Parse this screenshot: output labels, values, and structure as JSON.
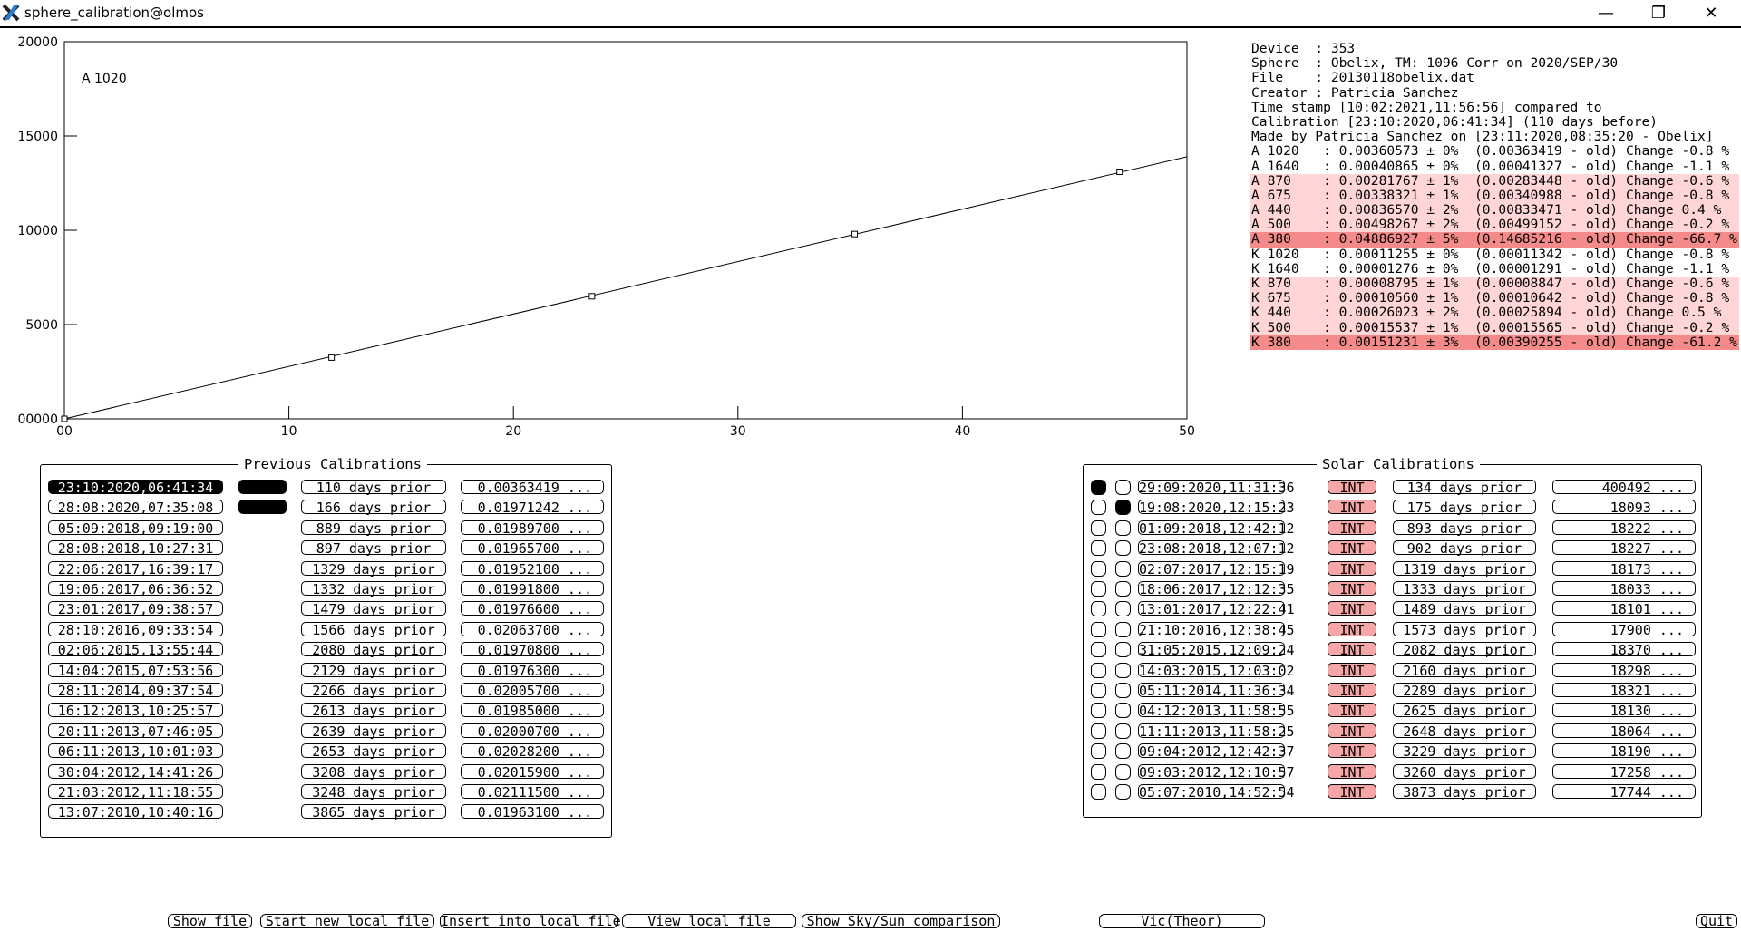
{
  "window": {
    "title": "sphere_calibration@olmos",
    "minimize_glyph": "—",
    "maximize_glyph": "❐",
    "close_glyph": "✕",
    "app_icon": "x-logo-icon"
  },
  "chart_data": {
    "type": "scatter",
    "annotation": "A 1020",
    "xlim": [
      0,
      50
    ],
    "ylim": [
      0,
      20000
    ],
    "xticks": [
      "00",
      "10",
      "20",
      "30",
      "40",
      "50"
    ],
    "yticks": [
      "00000",
      "5000",
      "10000",
      "15000",
      "20000"
    ],
    "xtick_values": [
      0,
      10,
      20,
      30,
      40,
      50
    ],
    "ytick_values": [
      0,
      5000,
      10000,
      15000,
      20000
    ],
    "points": [
      {
        "x": 0,
        "y": 0
      },
      {
        "x": 11.9,
        "y": 3250
      },
      {
        "x": 23.5,
        "y": 6500
      },
      {
        "x": 35.2,
        "y": 9800
      },
      {
        "x": 47.0,
        "y": 13100
      }
    ],
    "fit_line": [
      {
        "x": 0,
        "y": 0
      },
      {
        "x": 50,
        "y": 13900
      }
    ],
    "grid": false
  },
  "info": {
    "header_lines": [
      "Device  : 353",
      "Sphere  : Obelix, TM: 1096 Corr on 2020/SEP/30",
      "File    : 20130118obelix.dat",
      "Creator : Patricia Sanchez",
      "Time stamp [10:02:2021,11:56:56] compared to",
      "Calibration [23:10:2020,06:41:34] (110 days before)",
      "Made by Patricia Sanchez on [23:11:2020,08:35:20 - Obelix]"
    ],
    "coef_lines": [
      {
        "text": "A 1020   : 0.00360573 ± 0%  (0.00363419 - old) Change -0.8 %",
        "level": "none"
      },
      {
        "text": "A 1640   : 0.00040865 ± 0%  (0.00041327 - old) Change -1.1 %",
        "level": "none"
      },
      {
        "text": "A 870    : 0.00281767 ± 1%  (0.00283448 - old) Change -0.6 %",
        "level": "pink"
      },
      {
        "text": "A 675    : 0.00338321 ± 1%  (0.00340988 - old) Change -0.8 %",
        "level": "pink"
      },
      {
        "text": "A 440    : 0.00836570 ± 2%  (0.00833471 - old) Change 0.4 %",
        "level": "pink"
      },
      {
        "text": "A 500    : 0.00498267 ± 2%  (0.00499152 - old) Change -0.2 %",
        "level": "pink"
      },
      {
        "text": "A 380    : 0.04886927 ± 5%  (0.14685216 - old) Change -66.7 %",
        "level": "red"
      },
      {
        "text": "K 1020   : 0.00011255 ± 0%  (0.00011342 - old) Change -0.8 %",
        "level": "none"
      },
      {
        "text": "K 1640   : 0.00001276 ± 0%  (0.00001291 - old) Change -1.1 %",
        "level": "none"
      },
      {
        "text": "K 870    : 0.00008795 ± 1%  (0.00008847 - old) Change -0.6 %",
        "level": "pink"
      },
      {
        "text": "K 675    : 0.00010560 ± 1%  (0.00010642 - old) Change -0.8 %",
        "level": "pink"
      },
      {
        "text": "K 440    : 0.00026023 ± 2%  (0.00025894 - old) Change 0.5 %",
        "level": "pink"
      },
      {
        "text": "K 500    : 0.00015537 ± 1%  (0.00015565 - old) Change -0.2 %",
        "level": "pink"
      },
      {
        "text": "K 380    : 0.00151231 ± 3%  (0.00390255 - old) Change -61.2 %",
        "level": "red"
      }
    ]
  },
  "previous": {
    "title": "Previous Calibrations",
    "rows": [
      {
        "date": "23:10:2020,06:41:34",
        "selected": true,
        "marked": true,
        "days": "110 days prior",
        "value": "0.00363419 ..."
      },
      {
        "date": "28:08:2020,07:35:08",
        "selected": false,
        "marked": true,
        "days": "166 days prior",
        "value": "0.01971242 ..."
      },
      {
        "date": "05:09:2018,09:19:00",
        "selected": false,
        "marked": false,
        "days": "889 days prior",
        "value": "0.01989700 ..."
      },
      {
        "date": "28:08:2018,10:27:31",
        "selected": false,
        "marked": false,
        "days": "897 days prior",
        "value": "0.01965700 ..."
      },
      {
        "date": "22:06:2017,16:39:17",
        "selected": false,
        "marked": false,
        "days": "1329 days prior",
        "value": "0.01952100 ..."
      },
      {
        "date": "19:06:2017,06:36:52",
        "selected": false,
        "marked": false,
        "days": "1332 days prior",
        "value": "0.01991800 ..."
      },
      {
        "date": "23:01:2017,09:38:57",
        "selected": false,
        "marked": false,
        "days": "1479 days prior",
        "value": "0.01976600 ..."
      },
      {
        "date": "28:10:2016,09:33:54",
        "selected": false,
        "marked": false,
        "days": "1566 days prior",
        "value": "0.02063700 ..."
      },
      {
        "date": "02:06:2015,13:55:44",
        "selected": false,
        "marked": false,
        "days": "2080 days prior",
        "value": "0.01970800 ..."
      },
      {
        "date": "14:04:2015,07:53:56",
        "selected": false,
        "marked": false,
        "days": "2129 days prior",
        "value": "0.01976300 ..."
      },
      {
        "date": "28:11:2014,09:37:54",
        "selected": false,
        "marked": false,
        "days": "2266 days prior",
        "value": "0.02005700 ..."
      },
      {
        "date": "16:12:2013,10:25:57",
        "selected": false,
        "marked": false,
        "days": "2613 days prior",
        "value": "0.01985000 ..."
      },
      {
        "date": "20:11:2013,07:46:05",
        "selected": false,
        "marked": false,
        "days": "2639 days prior",
        "value": "0.02000700 ..."
      },
      {
        "date": "06:11:2013,10:01:03",
        "selected": false,
        "marked": false,
        "days": "2653 days prior",
        "value": "0.02028200 ..."
      },
      {
        "date": "30:04:2012,14:41:26",
        "selected": false,
        "marked": false,
        "days": "3208 days prior",
        "value": "0.02015900 ..."
      },
      {
        "date": "21:03:2012,11:18:55",
        "selected": false,
        "marked": false,
        "days": "3248 days prior",
        "value": "0.02111500 ..."
      },
      {
        "date": "13:07:2010,10:40:16",
        "selected": false,
        "marked": false,
        "days": "3865 days prior",
        "value": "0.01963100 ..."
      }
    ]
  },
  "solar": {
    "title": "Solar Calibrations",
    "int_label": "INT",
    "rows": [
      {
        "c1": true,
        "c2": false,
        "date": "29:09:2020,11:31:36",
        "days": "134 days prior",
        "value": "400492 ..."
      },
      {
        "c1": false,
        "c2": true,
        "date": "19:08:2020,12:15:23",
        "days": "175 days prior",
        "value": "18093 ..."
      },
      {
        "c1": false,
        "c2": false,
        "date": "01:09:2018,12:42:12",
        "days": "893 days prior",
        "value": "18222 ..."
      },
      {
        "c1": false,
        "c2": false,
        "date": "23:08:2018,12:07:12",
        "days": "902 days prior",
        "value": "18227 ..."
      },
      {
        "c1": false,
        "c2": false,
        "date": "02:07:2017,12:15:19",
        "days": "1319 days prior",
        "value": "18173 ..."
      },
      {
        "c1": false,
        "c2": false,
        "date": "18:06:2017,12:12:35",
        "days": "1333 days prior",
        "value": "18033 ..."
      },
      {
        "c1": false,
        "c2": false,
        "date": "13:01:2017,12:22:41",
        "days": "1489 days prior",
        "value": "18101 ..."
      },
      {
        "c1": false,
        "c2": false,
        "date": "21:10:2016,12:38:45",
        "days": "1573 days prior",
        "value": "17900 ..."
      },
      {
        "c1": false,
        "c2": false,
        "date": "31:05:2015,12:09:24",
        "days": "2082 days prior",
        "value": "18370 ..."
      },
      {
        "c1": false,
        "c2": false,
        "date": "14:03:2015,12:03:02",
        "days": "2160 days prior",
        "value": "18298 ..."
      },
      {
        "c1": false,
        "c2": false,
        "date": "05:11:2014,11:36:34",
        "days": "2289 days prior",
        "value": "18321 ..."
      },
      {
        "c1": false,
        "c2": false,
        "date": "04:12:2013,11:58:55",
        "days": "2625 days prior",
        "value": "18130 ..."
      },
      {
        "c1": false,
        "c2": false,
        "date": "11:11:2013,11:58:25",
        "days": "2648 days prior",
        "value": "18064 ..."
      },
      {
        "c1": false,
        "c2": false,
        "date": "09:04:2012,12:42:37",
        "days": "3229 days prior",
        "value": "18190 ..."
      },
      {
        "c1": false,
        "c2": false,
        "date": "09:03:2012,12:10:57",
        "days": "3260 days prior",
        "value": "17258 ..."
      },
      {
        "c1": false,
        "c2": false,
        "date": "05:07:2010,14:52:54",
        "days": "3873 days prior",
        "value": "17744 ..."
      }
    ]
  },
  "buttons": {
    "show_file": "Show file",
    "start_new": "Start new local file",
    "insert_into": "Insert into local file",
    "view_local": "View local file",
    "sky_sun": "Show Sky/Sun comparison",
    "vic": "Vic(Theor)",
    "quit": "Quit"
  },
  "colors": {
    "pink": "#ffd5d5",
    "red": "#f58a8a",
    "int": "#f6a6a6"
  }
}
